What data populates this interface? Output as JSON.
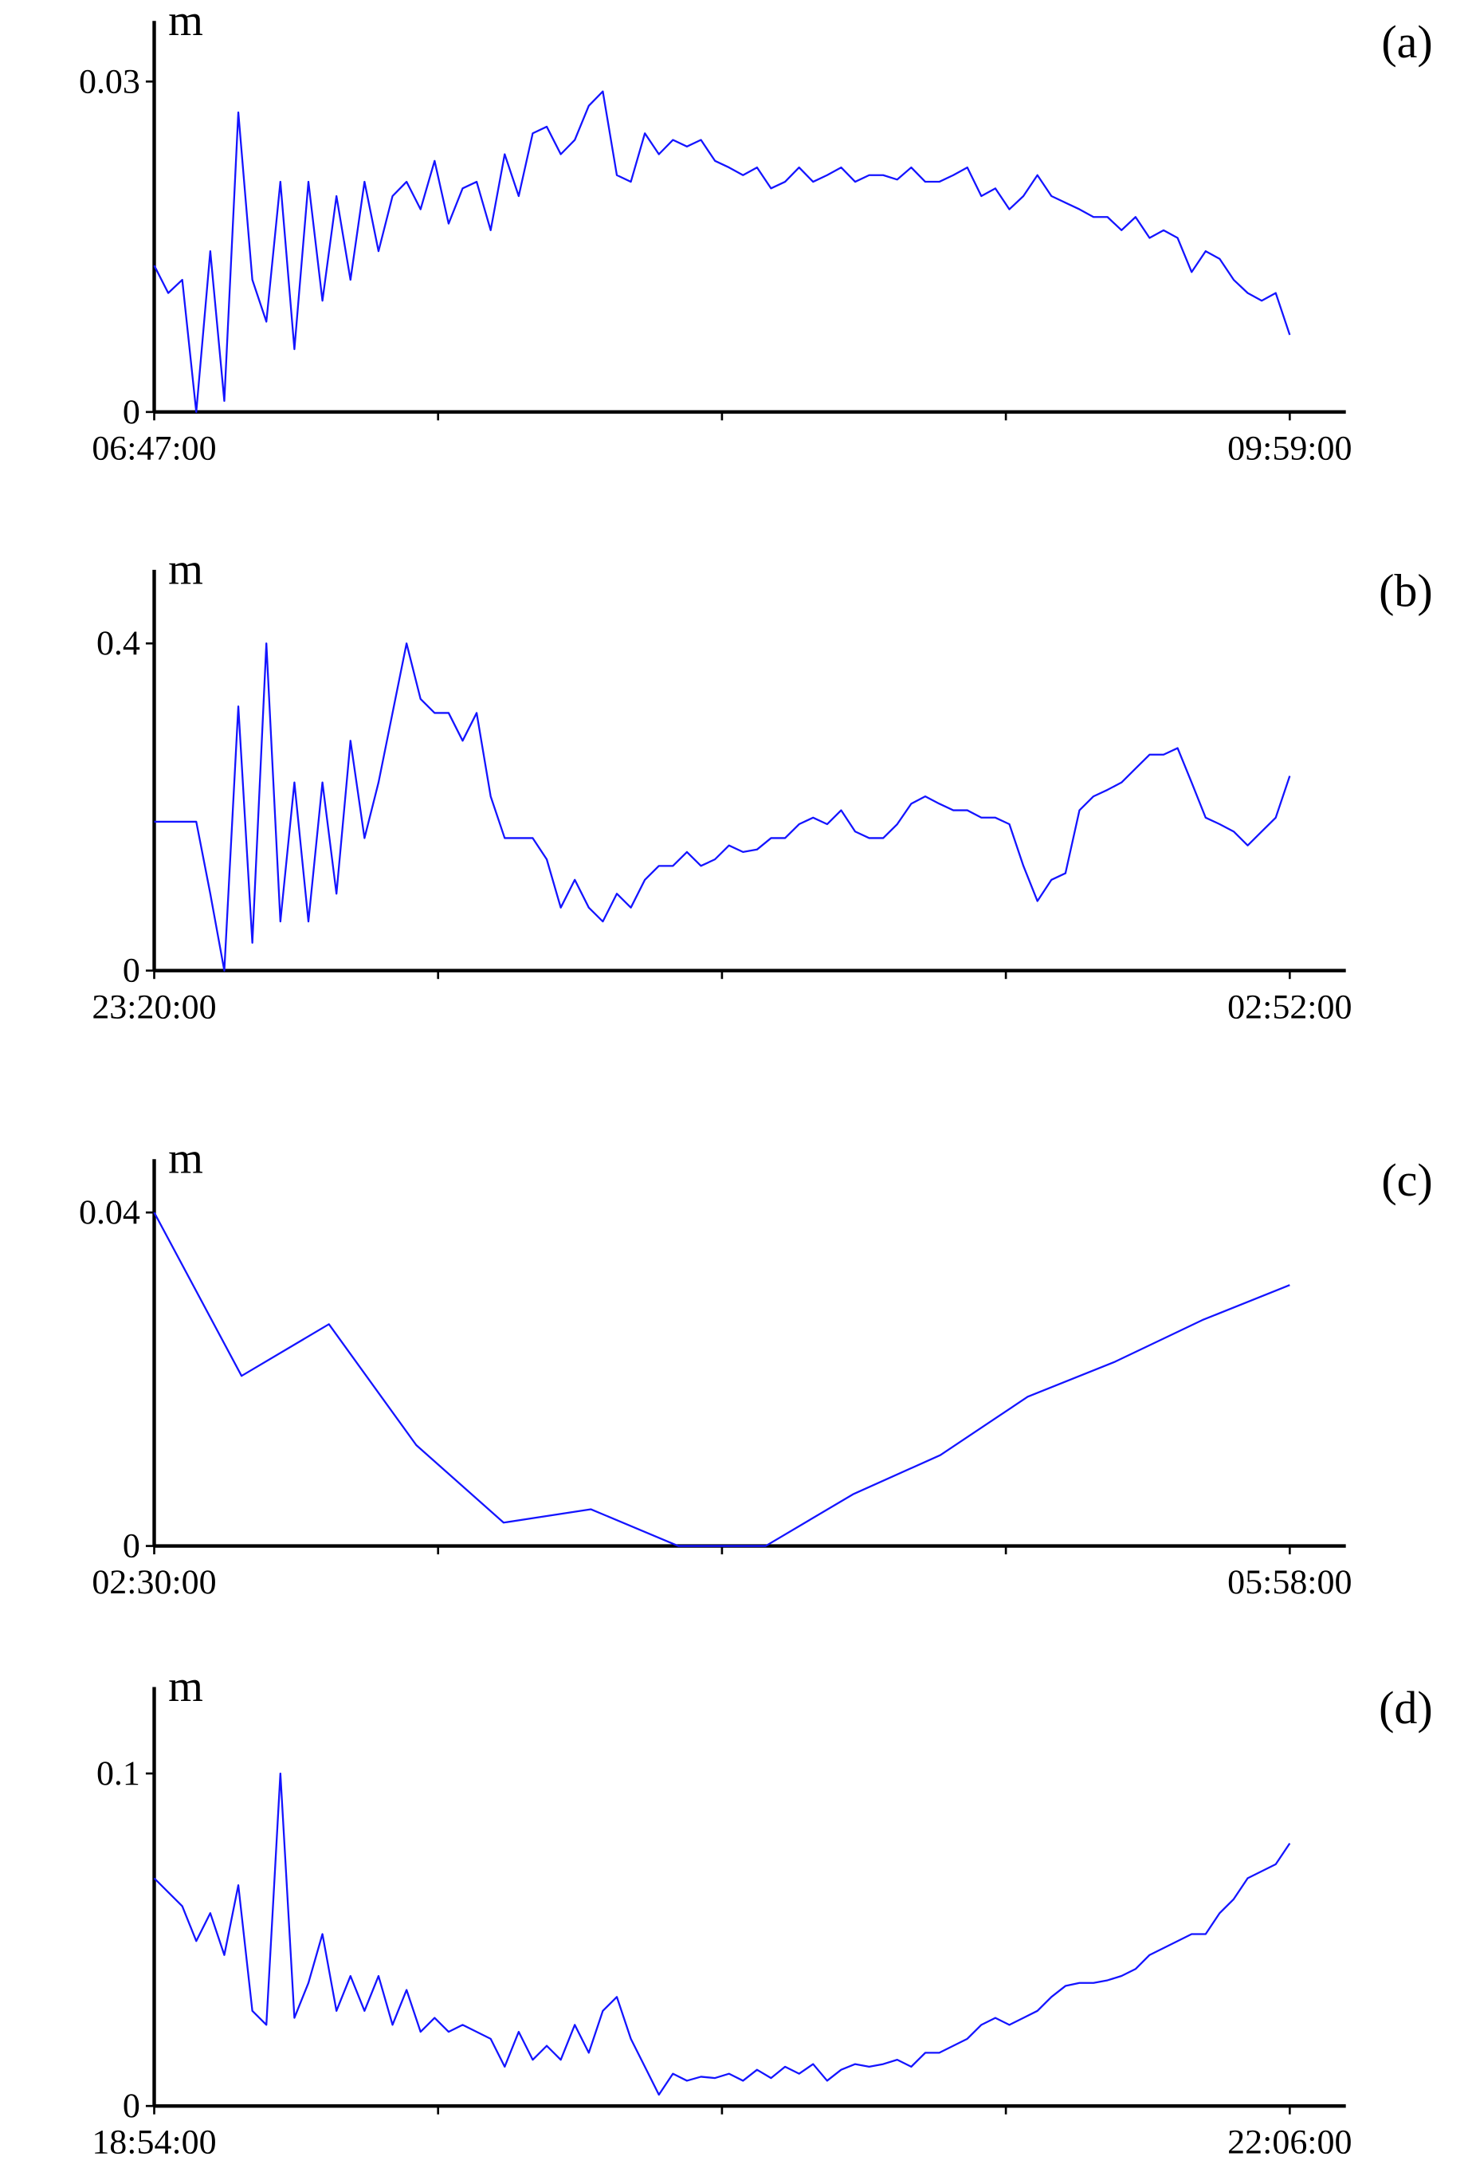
{
  "chart_data": [
    {
      "type": "line",
      "y_label": "m",
      "panel_label": "(a)",
      "color": "#1414ff",
      "xticks": [
        "06:47:00",
        null,
        null,
        null,
        "09:59:00"
      ],
      "ylim": [
        0,
        0.0355
      ],
      "yticks": [
        0,
        0.03
      ],
      "values": [
        0.0133,
        0.0108,
        0.012,
        0,
        0.0146,
        0.001,
        0.0272,
        0.012,
        0.0082,
        0.0209,
        0.0057,
        0.0209,
        0.0101,
        0.0196,
        0.012,
        0.0209,
        0.0146,
        0.0196,
        0.0209,
        0.0184,
        0.0228,
        0.0171,
        0.0203,
        0.0209,
        0.0165,
        0.0234,
        0.0196,
        0.0253,
        0.0259,
        0.0234,
        0.0247,
        0.0278,
        0.0291,
        0.0215,
        0.0209,
        0.0253,
        0.0234,
        0.0247,
        0.0241,
        0.0247,
        0.0228,
        0.0222,
        0.0215,
        0.0222,
        0.0203,
        0.0209,
        0.0222,
        0.0209,
        0.0215,
        0.0222,
        0.0209,
        0.0215,
        0.0215,
        0.0211,
        0.0222,
        0.0209,
        0.0209,
        0.0215,
        0.0222,
        0.0196,
        0.0203,
        0.0184,
        0.0196,
        0.0215,
        0.0196,
        0.019,
        0.0184,
        0.0177,
        0.0177,
        0.0165,
        0.0177,
        0.0158,
        0.0165,
        0.0158,
        0.0127,
        0.0146,
        0.0139,
        0.012,
        0.0108,
        0.0101,
        0.0108,
        0.007
      ]
    },
    {
      "type": "line",
      "y_label": "m",
      "panel_label": "(b)",
      "color": "#1414ff",
      "xticks": [
        "23:20:00",
        null,
        null,
        null,
        "02:52:00"
      ],
      "ylim": [
        0,
        0.49
      ],
      "yticks": [
        0,
        0.4
      ],
      "values": [
        0.182,
        0.182,
        0.182,
        0.182,
        0.094,
        0,
        0.323,
        0.034,
        0.4,
        0.06,
        0.23,
        0.06,
        0.23,
        0.094,
        0.281,
        0.162,
        0.23,
        0.315,
        0.4,
        0.332,
        0.315,
        0.315,
        0.281,
        0.315,
        0.213,
        0.162,
        0.162,
        0.162,
        0.136,
        0.077,
        0.111,
        0.077,
        0.06,
        0.094,
        0.077,
        0.111,
        0.128,
        0.128,
        0.145,
        0.128,
        0.136,
        0.153,
        0.145,
        0.148,
        0.162,
        0.162,
        0.179,
        0.187,
        0.179,
        0.196,
        0.17,
        0.162,
        0.162,
        0.179,
        0.204,
        0.213,
        0.204,
        0.196,
        0.196,
        0.187,
        0.187,
        0.179,
        0.128,
        0.085,
        0.111,
        0.119,
        0.196,
        0.213,
        0.221,
        0.23,
        0.247,
        0.264,
        0.264,
        0.272,
        0.23,
        0.187,
        0.179,
        0.17,
        0.153,
        0.17,
        0.187,
        0.238
      ]
    },
    {
      "type": "line",
      "y_label": "m",
      "panel_label": "(c)",
      "color": "#1414ff",
      "xticks": [
        "02:30:00",
        null,
        null,
        null,
        "05:58:00"
      ],
      "ylim": [
        0,
        0.0464
      ],
      "yticks": [
        0,
        0.04
      ],
      "values": [
        0.04,
        0.0204,
        0.0266,
        0.0121,
        0.0028,
        0.0044,
        0,
        0,
        0.0062,
        0.0109,
        0.0179,
        0.0221,
        0.0271,
        0.0313
      ]
    },
    {
      "type": "line",
      "y_label": "m",
      "panel_label": "(d)",
      "color": "#1414ff",
      "xticks": [
        "18:54:00",
        null,
        null,
        null,
        "22:06:00"
      ],
      "ylim": [
        0,
        0.126
      ],
      "yticks": [
        0,
        0.1
      ],
      "values": [
        0.0685,
        0.0643,
        0.0601,
        0.0496,
        0.058,
        0.0454,
        0.0664,
        0.0286,
        0.0244,
        0.1,
        0.0265,
        0.037,
        0.0517,
        0.0286,
        0.0391,
        0.0286,
        0.0391,
        0.0244,
        0.0349,
        0.0223,
        0.0265,
        0.0223,
        0.0244,
        0.0223,
        0.0202,
        0.0118,
        0.0223,
        0.0139,
        0.0181,
        0.0139,
        0.0244,
        0.016,
        0.0286,
        0.0328,
        0.0202,
        0.0118,
        0.0034,
        0.0097,
        0.0076,
        0.0088,
        0.0084,
        0.0097,
        0.0076,
        0.0109,
        0.0084,
        0.0118,
        0.0097,
        0.0126,
        0.0076,
        0.0109,
        0.0126,
        0.0118,
        0.0126,
        0.0139,
        0.0118,
        0.016,
        0.016,
        0.0181,
        0.0202,
        0.0244,
        0.0265,
        0.0244,
        0.0265,
        0.0286,
        0.0328,
        0.0361,
        0.037,
        0.037,
        0.0378,
        0.0391,
        0.0412,
        0.0454,
        0.0475,
        0.0496,
        0.0517,
        0.0517,
        0.058,
        0.0622,
        0.0685,
        0.0706,
        0.0727,
        0.079
      ]
    }
  ]
}
